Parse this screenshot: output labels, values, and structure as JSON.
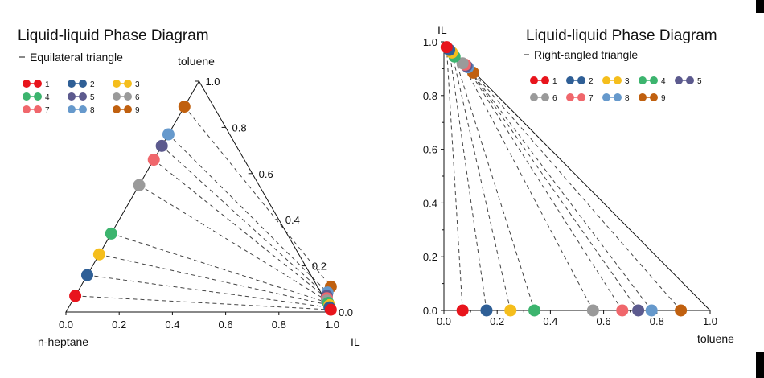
{
  "chart_data": [
    {
      "type": "ternary-scatter",
      "title": "Liquid-liquid Phase Diagram",
      "subtitle": "Equilateral triangle",
      "vertices": {
        "bottom_left": "n-heptane",
        "bottom_right": "IL",
        "top": "toluene"
      },
      "bottom_ticks": [
        "0.0",
        "0.2",
        "0.4",
        "0.6",
        "0.8",
        "1.0"
      ],
      "right_ticks": [
        "0.0",
        "0.2",
        "0.4",
        "0.6",
        "0.8",
        "1.0"
      ],
      "legend": [
        "1",
        "4",
        "7",
        "2",
        "5",
        "8",
        "3",
        "6",
        "9"
      ],
      "tie_lines": [
        {
          "label": "1",
          "raffinate": {
            "IL": 0.0,
            "toluene": 0.07
          },
          "extract": {
            "IL": 0.99,
            "toluene": 0.01
          }
        },
        {
          "label": "2",
          "raffinate": {
            "IL": 0.0,
            "toluene": 0.16
          },
          "extract": {
            "IL": 0.98,
            "toluene": 0.02
          }
        },
        {
          "label": "3",
          "raffinate": {
            "IL": 0.0,
            "toluene": 0.25
          },
          "extract": {
            "IL": 0.975,
            "toluene": 0.03
          }
        },
        {
          "label": "4",
          "raffinate": {
            "IL": 0.0,
            "toluene": 0.34
          },
          "extract": {
            "IL": 0.965,
            "toluene": 0.04
          }
        },
        {
          "label": "6",
          "raffinate": {
            "IL": 0.0,
            "toluene": 0.55
          },
          "extract": {
            "IL": 0.955,
            "toluene": 0.05
          }
        },
        {
          "label": "7",
          "raffinate": {
            "IL": 0.0,
            "toluene": 0.66
          },
          "extract": {
            "IL": 0.95,
            "toluene": 0.06
          }
        },
        {
          "label": "5",
          "raffinate": {
            "IL": 0.0,
            "toluene": 0.72
          },
          "extract": {
            "IL": 0.945,
            "toluene": 0.07
          }
        },
        {
          "label": "8",
          "raffinate": {
            "IL": 0.0,
            "toluene": 0.77
          },
          "extract": {
            "IL": 0.94,
            "toluene": 0.085
          }
        },
        {
          "label": "9",
          "raffinate": {
            "IL": 0.0,
            "toluene": 0.89
          },
          "extract": {
            "IL": 0.94,
            "toluene": 0.11
          }
        }
      ]
    },
    {
      "type": "scatter",
      "title": "Liquid-liquid Phase Diagram",
      "subtitle": "Right-angled triangle",
      "xlabel": "toluene",
      "ylabel": "IL",
      "xlim": [
        0,
        1
      ],
      "ylim": [
        0,
        1
      ],
      "x_ticks": [
        "0.0",
        "0.2",
        "0.4",
        "0.6",
        "0.8",
        "1.0"
      ],
      "y_ticks": [
        "0.0",
        "0.2",
        "0.4",
        "0.6",
        "0.8",
        "1.0"
      ],
      "legend": [
        "1",
        "2",
        "3",
        "4",
        "5",
        "6",
        "7",
        "8",
        "9"
      ],
      "tie_lines": [
        {
          "label": "1",
          "raffinate": {
            "toluene": 0.07,
            "IL": 0.0
          },
          "extract": {
            "toluene": 0.01,
            "IL": 0.98
          }
        },
        {
          "label": "2",
          "raffinate": {
            "toluene": 0.16,
            "IL": 0.0
          },
          "extract": {
            "toluene": 0.02,
            "IL": 0.97
          }
        },
        {
          "label": "3",
          "raffinate": {
            "toluene": 0.25,
            "IL": 0.0
          },
          "extract": {
            "toluene": 0.03,
            "IL": 0.96
          }
        },
        {
          "label": "4",
          "raffinate": {
            "toluene": 0.34,
            "IL": 0.0
          },
          "extract": {
            "toluene": 0.04,
            "IL": 0.945
          }
        },
        {
          "label": "6",
          "raffinate": {
            "toluene": 0.56,
            "IL": 0.0
          },
          "extract": {
            "toluene": 0.07,
            "IL": 0.92
          }
        },
        {
          "label": "7",
          "raffinate": {
            "toluene": 0.67,
            "IL": 0.0
          },
          "extract": {
            "toluene": 0.08,
            "IL": 0.915
          }
        },
        {
          "label": "5",
          "raffinate": {
            "toluene": 0.73,
            "IL": 0.0
          },
          "extract": {
            "toluene": 0.085,
            "IL": 0.91
          }
        },
        {
          "label": "8",
          "raffinate": {
            "toluene": 0.78,
            "IL": 0.0
          },
          "extract": {
            "toluene": 0.09,
            "IL": 0.905
          }
        },
        {
          "label": "9",
          "raffinate": {
            "toluene": 0.89,
            "IL": 0.0
          },
          "extract": {
            "toluene": 0.11,
            "IL": 0.885
          }
        }
      ]
    }
  ],
  "series_colors": {
    "1": "#e8141c",
    "2": "#2f5f96",
    "3": "#f5be1c",
    "4": "#3cb46e",
    "5": "#5c5a8e",
    "6": "#9a9a9a",
    "7": "#f0676c",
    "8": "#6699cc",
    "9": "#c0600f"
  }
}
